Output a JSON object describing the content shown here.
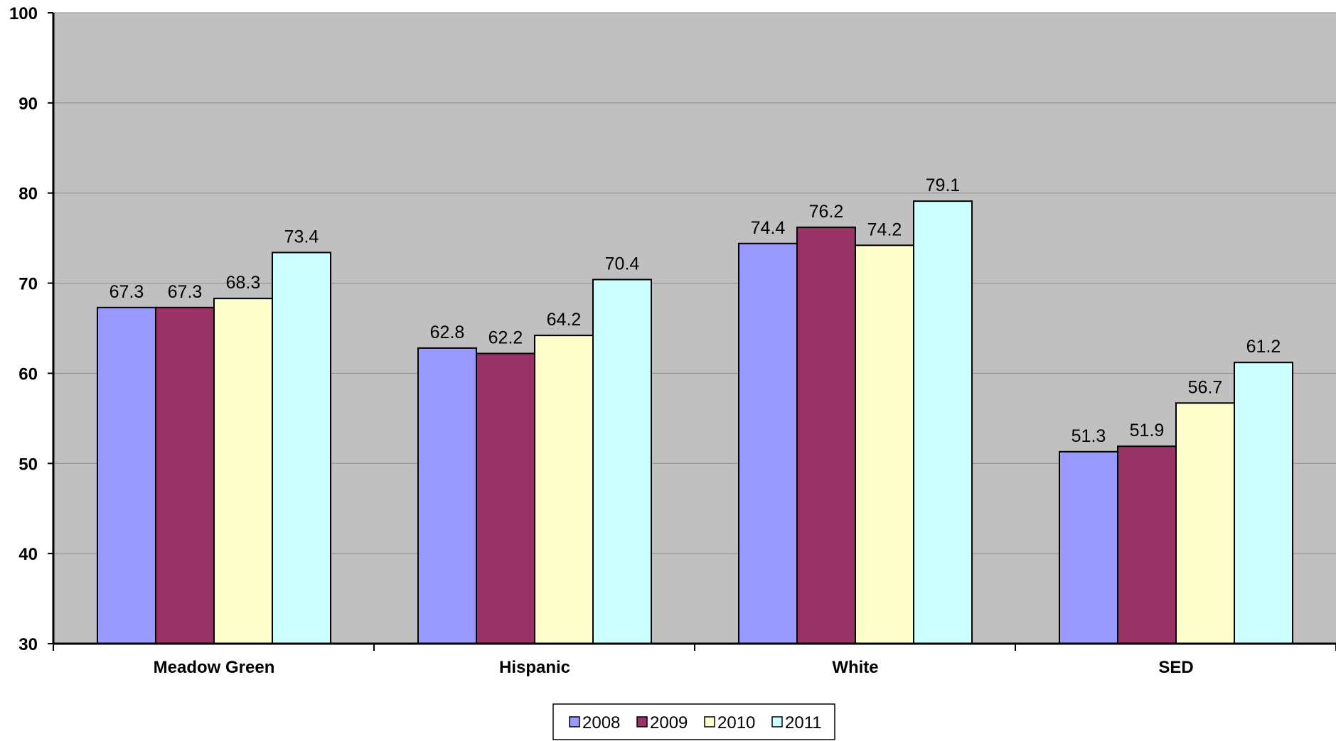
{
  "chart_data": {
    "type": "bar",
    "title": "",
    "xlabel": "",
    "ylabel": "",
    "categories": [
      "Meadow Green",
      "Hispanic",
      "White",
      "SED"
    ],
    "series": [
      {
        "name": "2008",
        "color": "#9999ff",
        "values": [
          67.3,
          62.8,
          74.4,
          51.3
        ]
      },
      {
        "name": "2009",
        "color": "#993366",
        "values": [
          67.3,
          62.2,
          76.2,
          51.9
        ]
      },
      {
        "name": "2010",
        "color": "#ffffcc",
        "values": [
          68.3,
          64.2,
          74.2,
          56.7
        ]
      },
      {
        "name": "2011",
        "color": "#ccffff",
        "values": [
          73.4,
          70.4,
          79.1,
          61.2
        ]
      }
    ],
    "ylim": [
      30,
      100
    ],
    "yticks": [
      30,
      40,
      50,
      60,
      70,
      80,
      90,
      100
    ],
    "grid": true,
    "plot_background": "#c0c0c0",
    "legend_position": "bottom-center"
  }
}
